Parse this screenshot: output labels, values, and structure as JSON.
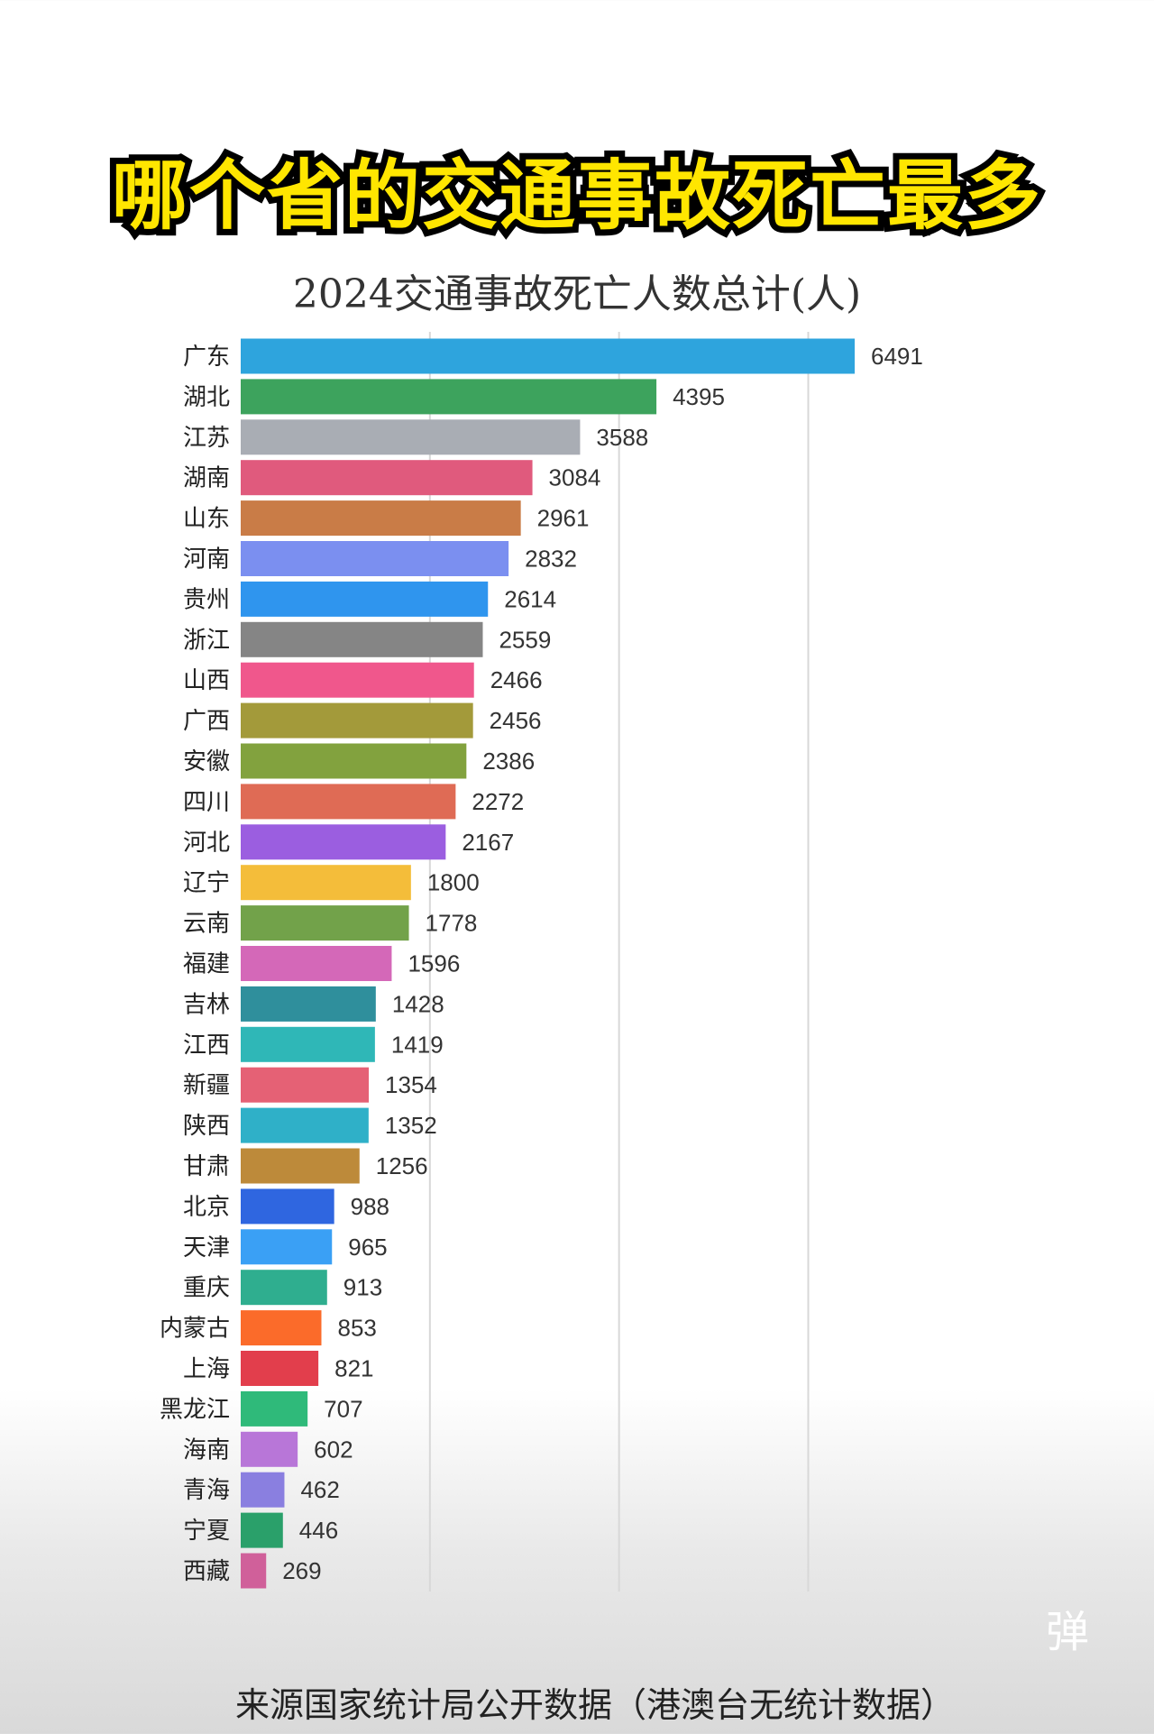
{
  "headline": "哪个省的交通事故死亡最多",
  "footer": "来源国家统计局公开数据（港澳台无统计数据）",
  "danmu_icon": {
    "name": "danmu-toggle-icon",
    "label": "弹"
  },
  "chart_data": {
    "type": "bar",
    "orientation": "horizontal",
    "title": "2024交通事故死亡人数总计(人)",
    "xlim": [
      0,
      6500
    ],
    "grid": true,
    "gridlines": [
      2000,
      4000,
      6000
    ],
    "categories": [
      "广东",
      "湖北",
      "江苏",
      "湖南",
      "山东",
      "河南",
      "贵州",
      "浙江",
      "山西",
      "广西",
      "安徽",
      "四川",
      "河北",
      "辽宁",
      "云南",
      "福建",
      "吉林",
      "江西",
      "新疆",
      "陕西",
      "甘肃",
      "北京",
      "天津",
      "重庆",
      "内蒙古",
      "上海",
      "黑龙江",
      "海南",
      "青海",
      "宁夏",
      "西藏"
    ],
    "values": [
      6491,
      4395,
      3588,
      3084,
      2961,
      2832,
      2614,
      2559,
      2466,
      2456,
      2386,
      2272,
      2167,
      1800,
      1778,
      1596,
      1428,
      1419,
      1354,
      1352,
      1256,
      988,
      965,
      913,
      853,
      821,
      707,
      602,
      462,
      446,
      269
    ],
    "colors": [
      "#2ea4dd",
      "#3da35d",
      "#a9adb4",
      "#e05a7d",
      "#c97c47",
      "#7b8ff0",
      "#2f95ee",
      "#858585",
      "#f0578c",
      "#a39a3a",
      "#82a23e",
      "#df6b55",
      "#9b5ee0",
      "#f4bd3a",
      "#72a24a",
      "#d468b8",
      "#2f8f9c",
      "#2fb7b7",
      "#e56175",
      "#2fb0c8",
      "#bd8a3a",
      "#2f66e0",
      "#3aa0f5",
      "#2fae8f",
      "#fb6b2a",
      "#e23e4c",
      "#2fba7a",
      "#b876d8",
      "#8a7fe0",
      "#2aa06a",
      "#d0609a"
    ]
  }
}
